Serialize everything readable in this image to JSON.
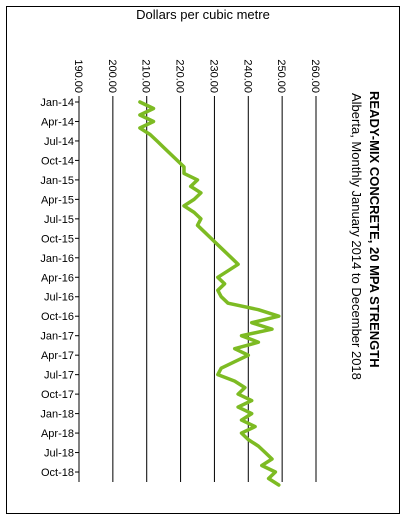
{
  "chart_data": {
    "type": "line",
    "orientation": "rotated-90-clockwise",
    "title": "READY-MIX  CONCRETE,  20 MPA STRENGTH",
    "subtitle": "Alberta, Monthly January 2014 to December 2018",
    "ylabel": "Dollars per cubic metre",
    "ylim": [
      190,
      260
    ],
    "yticks": [
      "190.00",
      "200.00",
      "210.00",
      "220.00",
      "230.00",
      "240.00",
      "250.00",
      "260.00"
    ],
    "xtick_labels": [
      "Jan-14",
      "Apr-14",
      "Jul-14",
      "Oct-14",
      "Jan-15",
      "Apr-15",
      "Jul-15",
      "Oct-15",
      "Jan-16",
      "Apr-16",
      "Jul-16",
      "Oct-16",
      "Jan-17",
      "Apr-17",
      "Jul-17",
      "Oct-17",
      "Jan-18",
      "Apr-18",
      "Jul-18",
      "Oct-18"
    ],
    "grid": true,
    "series": [
      {
        "color": "#7dbb23",
        "x": [
          "Jan-14",
          "Feb-14",
          "Mar-14",
          "Apr-14",
          "May-14",
          "Jun-14",
          "Jul-14",
          "Aug-14",
          "Sep-14",
          "Oct-14",
          "Nov-14",
          "Dec-14",
          "Jan-15",
          "Feb-15",
          "Mar-15",
          "Apr-15",
          "May-15",
          "Jun-15",
          "Jul-15",
          "Aug-15",
          "Sep-15",
          "Oct-15",
          "Nov-15",
          "Dec-15",
          "Jan-16",
          "Feb-16",
          "Mar-16",
          "Apr-16",
          "May-16",
          "Jun-16",
          "Jul-16",
          "Aug-16",
          "Sep-16",
          "Oct-16",
          "Nov-16",
          "Dec-16",
          "Jan-17",
          "Feb-17",
          "Mar-17",
          "Apr-17",
          "May-17",
          "Jun-17",
          "Jul-17",
          "Aug-17",
          "Sep-17",
          "Oct-17",
          "Nov-17",
          "Dec-17",
          "Jan-18",
          "Feb-18",
          "Mar-18",
          "Apr-18",
          "May-18",
          "Jun-18",
          "Jul-18",
          "Aug-18",
          "Sep-18",
          "Oct-18",
          "Nov-18",
          "Dec-18"
        ],
        "values": [
          208,
          212,
          208,
          212,
          208,
          211,
          213,
          215,
          217,
          219,
          221,
          221,
          225,
          223,
          226,
          224,
          221,
          224,
          226,
          225,
          227,
          229,
          231,
          233,
          235,
          237,
          234,
          231,
          233,
          231,
          232,
          234,
          243,
          249,
          241,
          247,
          238,
          243,
          236,
          240,
          236,
          232,
          231,
          236,
          239,
          237,
          241,
          237,
          241,
          238,
          242,
          238,
          240,
          243,
          245,
          247,
          244,
          248,
          246,
          249
        ]
      }
    ]
  }
}
